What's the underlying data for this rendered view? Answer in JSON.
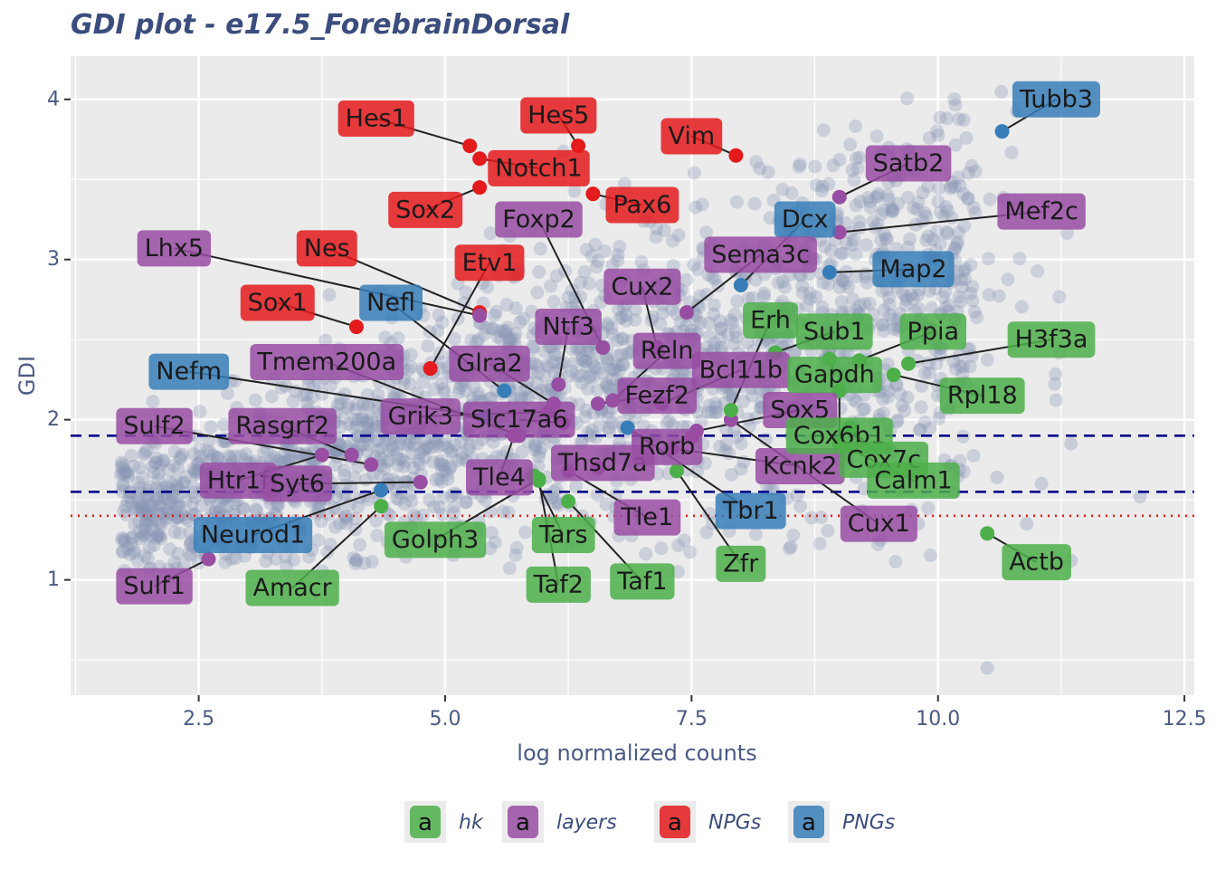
{
  "chart_data": {
    "type": "scatter",
    "title": "GDI plot - e17.5_ForebrainDorsal",
    "xlabel": "log normalized counts",
    "ylabel": "GDI",
    "xlim": [
      1.2,
      12.6
    ],
    "ylim": [
      0.28,
      4.27
    ],
    "x_ticks": [
      2.5,
      5.0,
      7.5,
      10.0,
      12.5
    ],
    "y_ticks": [
      1,
      2,
      3,
      4
    ],
    "x_tick_labels": [
      "2.5",
      "5.0",
      "7.5",
      "10.0",
      "12.5"
    ],
    "y_tick_labels": [
      "1",
      "2",
      "3",
      "4"
    ],
    "grid": true,
    "legend_position": "bottom",
    "hlines": [
      {
        "y": 1.9,
        "style": "dashed",
        "color": "#00008b"
      },
      {
        "y": 1.55,
        "style": "dashed",
        "color": "#00008b"
      },
      {
        "y": 1.4,
        "style": "dotted",
        "color": "#e41a1c"
      }
    ],
    "background_points_color": "#8a95b5",
    "groups": [
      {
        "name": "hk",
        "color": "#4daf4a"
      },
      {
        "name": "layers",
        "color": "#984ea3"
      },
      {
        "name": "NPGs",
        "color": "#e41a1c"
      },
      {
        "name": "PNGs",
        "color": "#377eb8"
      }
    ],
    "highlighted": [
      {
        "gene": "Hes1",
        "group": "NPGs",
        "x": 5.25,
        "y": 3.71,
        "lx": 4.3,
        "ly": 3.88
      },
      {
        "gene": "Hes5",
        "group": "NPGs",
        "x": 6.35,
        "y": 3.71,
        "lx": 6.15,
        "ly": 3.9
      },
      {
        "gene": "Vim",
        "group": "NPGs",
        "x": 7.95,
        "y": 3.65,
        "lx": 7.5,
        "ly": 3.77
      },
      {
        "gene": "Notch1",
        "group": "NPGs",
        "x": 5.35,
        "y": 3.63,
        "lx": 5.95,
        "ly": 3.57
      },
      {
        "gene": "Sox2",
        "group": "NPGs",
        "x": 5.35,
        "y": 3.45,
        "lx": 4.8,
        "ly": 3.31
      },
      {
        "gene": "Pax6",
        "group": "NPGs",
        "x": 6.5,
        "y": 3.41,
        "lx": 7.0,
        "ly": 3.34
      },
      {
        "gene": "Nes",
        "group": "NPGs",
        "x": 5.35,
        "y": 2.67,
        "lx": 3.8,
        "ly": 3.07
      },
      {
        "gene": "Sox1",
        "group": "NPGs",
        "x": 4.1,
        "y": 2.58,
        "lx": 3.3,
        "ly": 2.73
      },
      {
        "gene": "Etv1",
        "group": "NPGs",
        "x": 4.85,
        "y": 2.32,
        "lx": 5.45,
        "ly": 2.98
      },
      {
        "gene": "Tubb3",
        "group": "PNGs",
        "x": 10.65,
        "y": 3.8,
        "lx": 11.2,
        "ly": 4.0
      },
      {
        "gene": "Dcx",
        "group": "PNGs",
        "x": 8.0,
        "y": 2.84,
        "lx": 8.65,
        "ly": 3.25
      },
      {
        "gene": "Map2",
        "group": "PNGs",
        "x": 8.9,
        "y": 2.92,
        "lx": 9.75,
        "ly": 2.94
      },
      {
        "gene": "Nefl",
        "group": "PNGs",
        "x": 5.6,
        "y": 2.18,
        "lx": 4.45,
        "ly": 2.73
      },
      {
        "gene": "Nefm",
        "group": "PNGs",
        "x": 5.4,
        "y": 2.02,
        "lx": 2.4,
        "ly": 2.3
      },
      {
        "gene": "Neurod1",
        "group": "PNGs",
        "x": 4.35,
        "y": 1.56,
        "lx": 3.05,
        "ly": 1.28
      },
      {
        "gene": "Tbr1",
        "group": "PNGs",
        "x": 6.85,
        "y": 1.95,
        "lx": 8.1,
        "ly": 1.43
      },
      {
        "gene": "Satb2",
        "group": "layers",
        "x": 9.0,
        "y": 3.39,
        "lx": 9.7,
        "ly": 3.6
      },
      {
        "gene": "Mef2c",
        "group": "layers",
        "x": 9.0,
        "y": 3.17,
        "lx": 11.05,
        "ly": 3.3
      },
      {
        "gene": "Lhx5",
        "group": "layers",
        "x": 5.35,
        "y": 2.65,
        "lx": 2.25,
        "ly": 3.07
      },
      {
        "gene": "Foxp2",
        "group": "layers",
        "x": 6.6,
        "y": 2.45,
        "lx": 5.95,
        "ly": 3.25
      },
      {
        "gene": "Sema3c",
        "group": "layers",
        "x": 7.45,
        "y": 2.67,
        "lx": 8.2,
        "ly": 3.03
      },
      {
        "gene": "Cux2",
        "group": "layers",
        "x": 7.15,
        "y": 2.45,
        "lx": 7.0,
        "ly": 2.83
      },
      {
        "gene": "Ntf3",
        "group": "layers",
        "x": 6.15,
        "y": 2.22,
        "lx": 6.25,
        "ly": 2.58
      },
      {
        "gene": "Reln",
        "group": "layers",
        "x": 6.7,
        "y": 2.12,
        "lx": 7.25,
        "ly": 2.43
      },
      {
        "gene": "Bcl11b",
        "group": "layers",
        "x": 7.2,
        "y": 2.1,
        "lx": 8.0,
        "ly": 2.31
      },
      {
        "gene": "Tmem200a",
        "group": "layers",
        "x": 5.75,
        "y": 1.9,
        "lx": 3.8,
        "ly": 2.36
      },
      {
        "gene": "Glra2",
        "group": "layers",
        "x": 6.1,
        "y": 2.1,
        "lx": 5.45,
        "ly": 2.35
      },
      {
        "gene": "Fezf2",
        "group": "layers",
        "x": 6.55,
        "y": 2.1,
        "lx": 7.15,
        "ly": 2.15
      },
      {
        "gene": "Sox5",
        "group": "layers",
        "x": 7.55,
        "y": 1.93,
        "lx": 8.6,
        "ly": 2.06
      },
      {
        "gene": "Grik3",
        "group": "layers",
        "x": 6.05,
        "y": 2.05,
        "lx": 4.75,
        "ly": 2.02
      },
      {
        "gene": "Slc17a6",
        "group": "layers",
        "x": 6.2,
        "y": 1.98,
        "lx": 5.75,
        "ly": 2.0
      },
      {
        "gene": "Sulf2",
        "group": "layers",
        "x": 4.25,
        "y": 1.72,
        "lx": 2.05,
        "ly": 1.96
      },
      {
        "gene": "Rasgrf2",
        "group": "layers",
        "x": 4.05,
        "y": 1.78,
        "lx": 3.35,
        "ly": 1.96
      },
      {
        "gene": "Htr1f",
        "group": "layers",
        "x": 3.75,
        "y": 1.78,
        "lx": 2.9,
        "ly": 1.62
      },
      {
        "gene": "Syt6",
        "group": "layers",
        "x": 4.75,
        "y": 1.61,
        "lx": 3.5,
        "ly": 1.6
      },
      {
        "gene": "Tle4",
        "group": "layers",
        "x": 5.7,
        "y": 1.9,
        "lx": 5.55,
        "ly": 1.64
      },
      {
        "gene": "Thsd7a",
        "group": "layers",
        "x": 6.55,
        "y": 1.7,
        "lx": 6.6,
        "ly": 1.73
      },
      {
        "gene": "Rorb",
        "group": "layers",
        "x": 7.5,
        "y": 1.89,
        "lx": 7.25,
        "ly": 1.83
      },
      {
        "gene": "Kcnk2",
        "group": "layers",
        "x": 7.3,
        "y": 1.82,
        "lx": 8.6,
        "ly": 1.71
      },
      {
        "gene": "Tle1",
        "group": "layers",
        "x": 6.25,
        "y": 1.68,
        "lx": 7.05,
        "ly": 1.39
      },
      {
        "gene": "Cux1",
        "group": "layers",
        "x": 7.9,
        "y": 2.0,
        "lx": 9.4,
        "ly": 1.35
      },
      {
        "gene": "Sulf1",
        "group": "layers",
        "x": 2.6,
        "y": 1.13,
        "lx": 2.05,
        "ly": 0.96
      },
      {
        "gene": "Erh",
        "group": "hk",
        "x": 7.9,
        "y": 2.06,
        "lx": 8.3,
        "ly": 2.62
      },
      {
        "gene": "Sub1",
        "group": "hk",
        "x": 8.35,
        "y": 2.42,
        "lx": 8.95,
        "ly": 2.55
      },
      {
        "gene": "Ppia",
        "group": "hk",
        "x": 9.2,
        "y": 2.37,
        "lx": 9.95,
        "ly": 2.55
      },
      {
        "gene": "H3f3a",
        "group": "hk",
        "x": 9.7,
        "y": 2.35,
        "lx": 11.15,
        "ly": 2.5
      },
      {
        "gene": "Gapdh",
        "group": "hk",
        "x": 8.9,
        "y": 2.38,
        "lx": 8.95,
        "ly": 2.28
      },
      {
        "gene": "Rpl18",
        "group": "hk",
        "x": 9.55,
        "y": 2.28,
        "lx": 10.45,
        "ly": 2.15
      },
      {
        "gene": "Cox6b1",
        "group": "hk",
        "x": 9.0,
        "y": 2.18,
        "lx": 9.0,
        "ly": 1.9
      },
      {
        "gene": "Cox7c",
        "group": "hk",
        "x": 9.1,
        "y": 1.95,
        "lx": 9.45,
        "ly": 1.75
      },
      {
        "gene": "Calm1",
        "group": "hk",
        "x": 9.0,
        "y": 1.85,
        "lx": 9.75,
        "ly": 1.62
      },
      {
        "gene": "Actb",
        "group": "hk",
        "x": 10.5,
        "y": 1.29,
        "lx": 11.0,
        "ly": 1.11
      },
      {
        "gene": "Golph3",
        "group": "hk",
        "x": 5.95,
        "y": 1.63,
        "lx": 4.9,
        "ly": 1.25
      },
      {
        "gene": "Tars",
        "group": "hk",
        "x": 5.9,
        "y": 1.65,
        "lx": 6.2,
        "ly": 1.28
      },
      {
        "gene": "Taf2",
        "group": "hk",
        "x": 5.95,
        "y": 1.62,
        "lx": 6.15,
        "ly": 0.97
      },
      {
        "gene": "Taf1",
        "group": "hk",
        "x": 6.25,
        "y": 1.49,
        "lx": 7.0,
        "ly": 0.99
      },
      {
        "gene": "Zfr",
        "group": "hk",
        "x": 7.35,
        "y": 1.68,
        "lx": 8.0,
        "ly": 1.1
      },
      {
        "gene": "Amacr",
        "group": "hk",
        "x": 4.35,
        "y": 1.46,
        "lx": 3.45,
        "ly": 0.95
      }
    ]
  },
  "legend": {
    "key_glyph": "a",
    "items": [
      {
        "label": "hk",
        "color": "#4daf4a"
      },
      {
        "label": "layers",
        "color": "#984ea3"
      },
      {
        "label": "NPGs",
        "color": "#e41a1c"
      },
      {
        "label": "PNGs",
        "color": "#377eb8"
      }
    ]
  }
}
